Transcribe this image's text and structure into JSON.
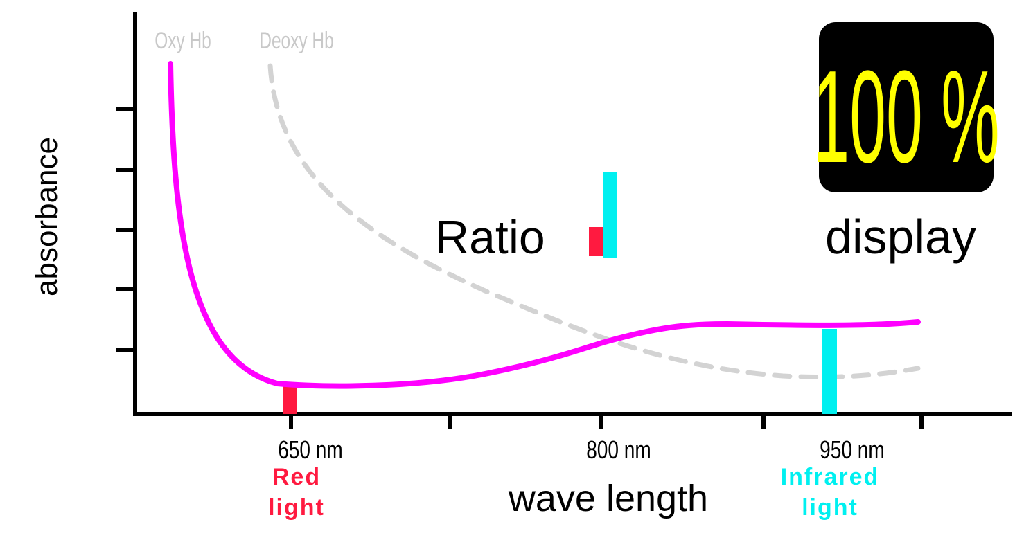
{
  "colors": {
    "oxy_curve": "#ff00ff",
    "deoxy_curve": "#d3d3d3",
    "red_light": "#ff1a40",
    "infrared_light": "#00f0f0",
    "display_bg": "#000000",
    "display_text": "#ffff00",
    "axis": "#000000",
    "curve_label": "#c8c8c8"
  },
  "axes": {
    "y_label": "absorbance",
    "x_label": "wave length"
  },
  "curve_labels": {
    "oxy": "Oxy Hb",
    "deoxy": "Deoxy Hb"
  },
  "x_ticks": [
    {
      "label": "650 nm",
      "sublabel": "Red\nlight",
      "sub_color": "red_light"
    },
    {
      "label": "800 nm",
      "sublabel": "",
      "sub_color": ""
    },
    {
      "label": "950 nm",
      "sublabel": "Infrared\nlight",
      "sub_color": "infrared_light"
    }
  ],
  "red_light_label": [
    "Red",
    "light"
  ],
  "infrared_light_label": [
    "Infrared",
    "light"
  ],
  "ratio": {
    "label": "Ratio"
  },
  "display": {
    "value": "100 %",
    "caption": "display"
  }
}
